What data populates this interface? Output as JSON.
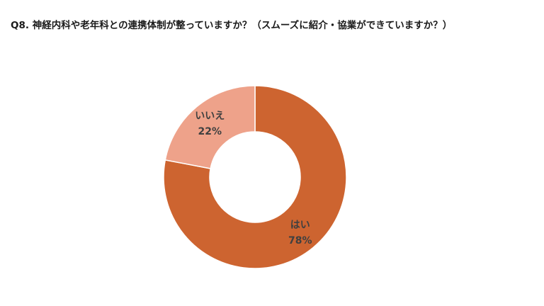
{
  "chart_data": {
    "type": "pie",
    "variant": "donut",
    "title": "Q8. 神経内科や老年科との連携体制が整っていますか？（スムーズに紹介・協業ができていますか？）",
    "categories": [
      "はい",
      "いいえ"
    ],
    "values": [
      78,
      22
    ],
    "value_labels": [
      "78%",
      "22%"
    ],
    "colors": [
      "#cd6430",
      "#eea28a"
    ],
    "start": "12 o'clock, clockwise",
    "legend": "none (labels on slices)"
  }
}
